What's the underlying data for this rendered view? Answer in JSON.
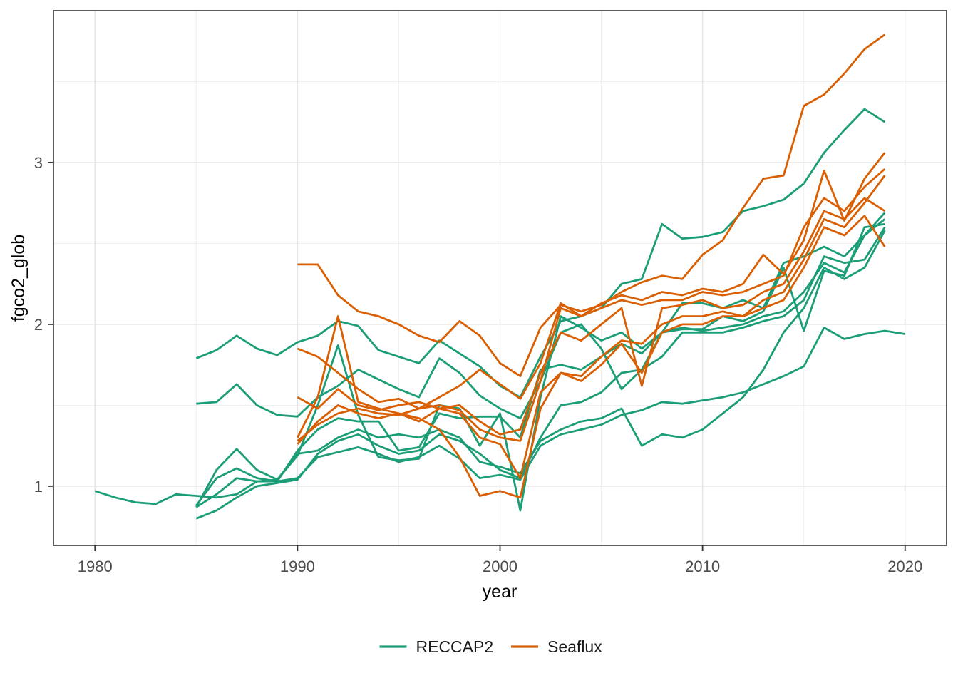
{
  "chart_data": {
    "type": "line",
    "title": "",
    "xlabel": "year",
    "ylabel": "fgco2_glob",
    "x_ticks": [
      1980,
      1990,
      2000,
      2010,
      2020
    ],
    "x_minor_ticks": [
      1985,
      1995,
      2005,
      2015
    ],
    "y_ticks": [
      1,
      2,
      3
    ],
    "y_minor_ticks": [
      1.5,
      2.5,
      3.5
    ],
    "xlim": [
      1977.95,
      2022.05
    ],
    "ylim": [
      0.634,
      3.938
    ],
    "grid": "major+minor",
    "panel_border": true,
    "colors": {
      "RECCAP2": "#1b9e77",
      "Seaflux": "#d95f02"
    },
    "legend": {
      "position": "bottom",
      "entries": [
        {
          "label": "RECCAP2",
          "color": "#1b9e77"
        },
        {
          "label": "Seaflux",
          "color": "#d95f02"
        }
      ]
    },
    "series": [
      {
        "name": "RECCAP2-1",
        "group": "RECCAP2",
        "start_year": 1980,
        "values": [
          0.97,
          0.93,
          0.9,
          0.89,
          0.95,
          0.94,
          0.93,
          0.95,
          1.03,
          1.03,
          1.05,
          1.18,
          1.21,
          1.24,
          1.2,
          1.15,
          1.18,
          1.25,
          1.17,
          1.05,
          1.07,
          1.04,
          1.25,
          1.32,
          1.35,
          1.38,
          1.44,
          1.47,
          1.52,
          1.51,
          1.53,
          1.55,
          1.58,
          1.63,
          1.68,
          1.74,
          1.98,
          1.91,
          1.94,
          1.96,
          1.94
        ]
      },
      {
        "name": "RECCAP2-2",
        "group": "RECCAP2",
        "start_year": 1985,
        "values": [
          1.79,
          1.84,
          1.93,
          1.85,
          1.81,
          1.89,
          1.93,
          2.02,
          1.99,
          1.84,
          1.8,
          1.76,
          1.9,
          1.82,
          1.74,
          1.62,
          1.55,
          1.8,
          2.02,
          2.05,
          2.1,
          2.25,
          2.28,
          2.62,
          2.53,
          2.54,
          2.57,
          2.7,
          2.73,
          2.77,
          2.87,
          3.06,
          3.2,
          3.33,
          3.25
        ]
      },
      {
        "name": "RECCAP2-3",
        "group": "RECCAP2",
        "start_year": 1985,
        "values": [
          1.51,
          1.52,
          1.63,
          1.5,
          1.44,
          1.43,
          1.55,
          1.62,
          1.72,
          1.66,
          1.6,
          1.55,
          1.79,
          1.7,
          1.56,
          1.48,
          1.42,
          1.65,
          1.95,
          2.0,
          1.85,
          1.6,
          1.72,
          1.95,
          2.13,
          2.13,
          2.1,
          2.15,
          2.1,
          2.38,
          2.42,
          2.48,
          2.42,
          2.55,
          2.69
        ]
      },
      {
        "name": "RECCAP2-4",
        "group": "RECCAP2",
        "start_year": 1985,
        "values": [
          0.87,
          1.1,
          1.23,
          1.1,
          1.04,
          1.19,
          1.5,
          1.87,
          1.44,
          1.18,
          1.16,
          1.17,
          1.5,
          1.48,
          1.25,
          1.45,
          0.85,
          1.55,
          2.05,
          1.98,
          1.9,
          1.95,
          1.85,
          1.95,
          1.97,
          1.97,
          2.05,
          2.02,
          2.08,
          2.35,
          1.96,
          2.33,
          2.3,
          2.6,
          2.62
        ]
      },
      {
        "name": "RECCAP2-5",
        "group": "RECCAP2",
        "start_year": 1985,
        "values": [
          0.88,
          1.05,
          1.11,
          1.05,
          1.03,
          1.22,
          1.35,
          1.42,
          1.4,
          1.4,
          1.22,
          1.24,
          1.45,
          1.42,
          1.43,
          1.43,
          1.3,
          1.72,
          1.75,
          1.72,
          1.8,
          1.88,
          1.82,
          1.95,
          1.98,
          1.96,
          1.98,
          2.0,
          2.05,
          2.08,
          2.2,
          2.38,
          2.32,
          2.55,
          2.65
        ]
      },
      {
        "name": "RECCAP2-6",
        "group": "RECCAP2",
        "start_year": 1985,
        "values": [
          0.8,
          0.85,
          0.93,
          1.0,
          1.02,
          1.04,
          1.2,
          1.28,
          1.32,
          1.25,
          1.2,
          1.22,
          1.32,
          1.28,
          1.2,
          1.1,
          1.05,
          1.3,
          1.5,
          1.52,
          1.58,
          1.7,
          1.72,
          1.8,
          1.95,
          1.95,
          1.95,
          1.98,
          2.02,
          2.05,
          2.15,
          2.42,
          2.38,
          2.4,
          2.6
        ]
      },
      {
        "name": "RECCAP2-7",
        "group": "RECCAP2",
        "start_year": 1985,
        "values": [
          0.87,
          0.95,
          1.05,
          1.03,
          1.04,
          1.2,
          1.22,
          1.3,
          1.35,
          1.3,
          1.32,
          1.3,
          1.35,
          1.3,
          1.15,
          1.12,
          1.08,
          1.28,
          1.35,
          1.4,
          1.42,
          1.48,
          1.25,
          1.32,
          1.3,
          1.35,
          1.45,
          1.55,
          1.72,
          1.95,
          2.1,
          2.35,
          2.28,
          2.35,
          2.58
        ]
      },
      {
        "name": "Seaflux-1",
        "group": "Seaflux",
        "start_year": 1990,
        "values": [
          2.37,
          2.37,
          2.18,
          2.08,
          2.05,
          2.0,
          1.93,
          1.89,
          2.02,
          1.93,
          1.76,
          1.68,
          1.98,
          2.12,
          2.08,
          2.12,
          2.2,
          2.26,
          2.3,
          2.28,
          2.43,
          2.52,
          2.72,
          2.9,
          2.92,
          3.35,
          3.42,
          3.55,
          3.7,
          3.79
        ]
      },
      {
        "name": "Seaflux-2",
        "group": "Seaflux",
        "start_year": 1990,
        "values": [
          1.85,
          1.8,
          1.7,
          1.6,
          1.52,
          1.54,
          1.48,
          1.55,
          1.62,
          1.72,
          1.63,
          1.54,
          1.76,
          2.13,
          2.05,
          2.13,
          2.18,
          2.15,
          2.2,
          2.18,
          2.22,
          2.2,
          2.25,
          2.43,
          2.31,
          2.52,
          2.95,
          2.64,
          2.9,
          3.06
        ]
      },
      {
        "name": "Seaflux-3",
        "group": "Seaflux",
        "start_year": 1990,
        "values": [
          1.3,
          1.55,
          2.05,
          1.52,
          1.48,
          1.45,
          1.42,
          1.35,
          1.18,
          0.94,
          0.97,
          0.93,
          1.48,
          1.7,
          1.65,
          1.75,
          1.88,
          1.7,
          1.95,
          2.0,
          2.0,
          2.05,
          2.05,
          2.1,
          2.15,
          2.35,
          2.6,
          2.55,
          2.67,
          2.48
        ]
      },
      {
        "name": "Seaflux-4",
        "group": "Seaflux",
        "start_year": 1990,
        "values": [
          1.28,
          1.38,
          1.45,
          1.48,
          1.45,
          1.44,
          1.48,
          1.5,
          1.47,
          1.35,
          1.3,
          1.28,
          1.65,
          2.1,
          2.05,
          2.1,
          2.15,
          2.12,
          2.15,
          2.15,
          2.2,
          2.18,
          2.2,
          2.25,
          2.3,
          2.6,
          2.78,
          2.7,
          2.85,
          2.96
        ]
      },
      {
        "name": "Seaflux-5",
        "group": "Seaflux",
        "start_year": 1990,
        "values": [
          1.26,
          1.4,
          1.5,
          1.45,
          1.42,
          1.45,
          1.4,
          1.48,
          1.45,
          1.3,
          1.26,
          1.05,
          1.58,
          1.7,
          1.68,
          1.8,
          1.9,
          1.88,
          2.0,
          2.05,
          2.05,
          2.08,
          2.05,
          2.15,
          2.2,
          2.4,
          2.65,
          2.6,
          2.75,
          2.92
        ]
      },
      {
        "name": "Seaflux-6",
        "group": "Seaflux",
        "start_year": 1990,
        "values": [
          1.55,
          1.48,
          1.6,
          1.5,
          1.47,
          1.5,
          1.52,
          1.48,
          1.5,
          1.4,
          1.32,
          1.35,
          1.7,
          1.95,
          1.9,
          2.0,
          2.1,
          1.62,
          2.1,
          2.12,
          2.15,
          2.1,
          2.12,
          2.2,
          2.25,
          2.45,
          2.7,
          2.65,
          2.78,
          2.7
        ]
      }
    ]
  }
}
